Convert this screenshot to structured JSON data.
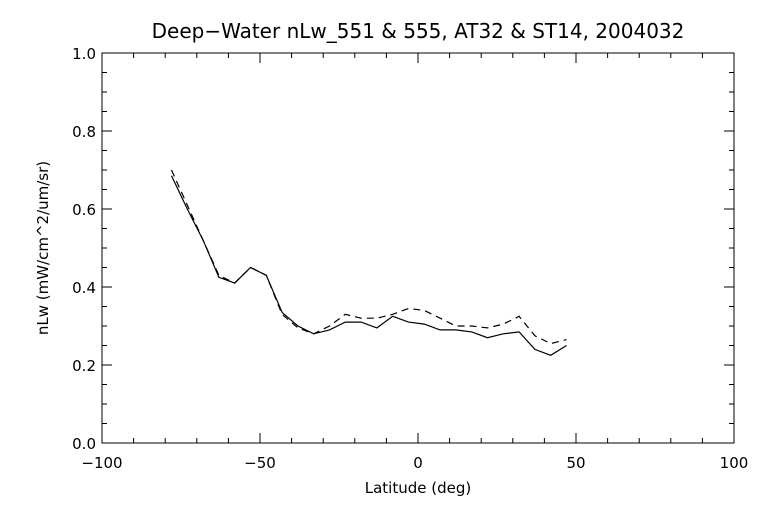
{
  "chart_data": {
    "type": "line",
    "title": "Deep−Water nLw_551 & 555, AT32 & ST14, 2004032",
    "xlabel": "Latitude (deg)",
    "ylabel": "nLw (mW/cm^2/um/sr)",
    "xlim": [
      -100,
      100
    ],
    "ylim": [
      0.0,
      1.0
    ],
    "x_ticks": [
      -100,
      -50,
      0,
      50,
      100
    ],
    "x_tick_labels": [
      "−100",
      "−50",
      "0",
      "50",
      "100"
    ],
    "y_ticks": [
      0.0,
      0.2,
      0.4,
      0.6,
      0.8,
      1.0
    ],
    "y_tick_labels": [
      "0.0",
      "0.2",
      "0.4",
      "0.6",
      "0.8",
      "1.0"
    ],
    "grid": false,
    "series": [
      {
        "style": "solid",
        "x": [
          -78,
          -73,
          -68,
          -63,
          -58,
          -53,
          -48,
          -43,
          -38,
          -33,
          -28,
          -23,
          -18,
          -13,
          -8,
          -3,
          2,
          7,
          12,
          17,
          22,
          27,
          32,
          37,
          42,
          47
        ],
        "y": [
          0.685,
          0.6,
          0.52,
          0.425,
          0.41,
          0.45,
          0.43,
          0.335,
          0.3,
          0.28,
          0.29,
          0.31,
          0.31,
          0.295,
          0.325,
          0.31,
          0.305,
          0.29,
          0.29,
          0.285,
          0.27,
          0.28,
          0.285,
          0.24,
          0.225,
          0.25
        ]
      },
      {
        "style": "dashed",
        "x": [
          -78,
          -73,
          -68,
          -63,
          -58,
          -53,
          -48,
          -43,
          -38,
          -33,
          -28,
          -23,
          -18,
          -13,
          -8,
          -3,
          2,
          7,
          12,
          17,
          22,
          27,
          32,
          37,
          42,
          47
        ],
        "y": [
          0.7,
          0.61,
          0.52,
          0.43,
          0.41,
          0.45,
          0.43,
          0.33,
          0.295,
          0.28,
          0.3,
          0.33,
          0.32,
          0.32,
          0.33,
          0.345,
          0.34,
          0.32,
          0.3,
          0.3,
          0.295,
          0.305,
          0.325,
          0.275,
          0.255,
          0.265
        ]
      }
    ]
  }
}
